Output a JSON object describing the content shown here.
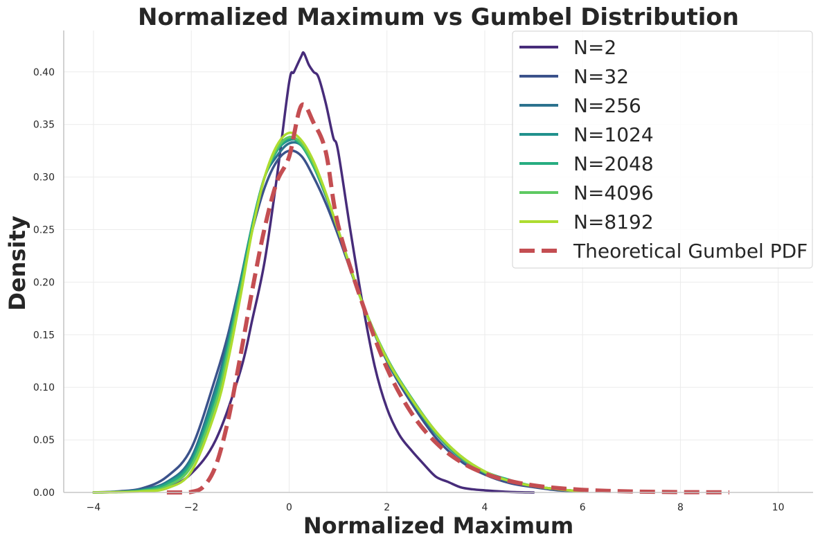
{
  "chart_data": {
    "type": "line",
    "title": "Normalized Maximum vs Gumbel Distribution",
    "xlabel": "Normalized Maximum",
    "ylabel": "Density",
    "xlim": [
      -4.6,
      10.7
    ],
    "ylim": [
      0,
      0.44
    ],
    "xticks": [
      -4,
      -2,
      0,
      2,
      4,
      6,
      8,
      10
    ],
    "xtick_labels": [
      "−4",
      "−2",
      "0",
      "2",
      "4",
      "6",
      "8",
      "10"
    ],
    "yticks": [
      0.0,
      0.05,
      0.1,
      0.15,
      0.2,
      0.25,
      0.3,
      0.35,
      0.4
    ],
    "ytick_labels": [
      "0.00",
      "0.05",
      "0.10",
      "0.15",
      "0.20",
      "0.25",
      "0.30",
      "0.35",
      "0.40"
    ],
    "grid": true,
    "legend_position": "top-right",
    "series": [
      {
        "name": "N=2",
        "color": "#472c7a",
        "style": "solid",
        "x": [
          -3,
          -2.5,
          -2,
          -1.5,
          -1,
          -0.75,
          -0.5,
          -0.25,
          0,
          0.1,
          0.25,
          0.3,
          0.4,
          0.5,
          0.6,
          0.75,
          0.9,
          1,
          1.25,
          1.5,
          1.75,
          2,
          2.25,
          2.5,
          2.75,
          3,
          3.25,
          3.5,
          3.75,
          4,
          4.5,
          5
        ],
        "y": [
          0.001,
          0.004,
          0.018,
          0.05,
          0.115,
          0.165,
          0.22,
          0.3,
          0.39,
          0.4,
          0.415,
          0.418,
          0.407,
          0.4,
          0.395,
          0.37,
          0.338,
          0.325,
          0.25,
          0.18,
          0.12,
          0.08,
          0.055,
          0.04,
          0.027,
          0.015,
          0.01,
          0.005,
          0.003,
          0.002,
          0.0005,
          0.0
        ]
      },
      {
        "name": "N=32",
        "color": "#3b528b",
        "style": "solid",
        "x": [
          -4,
          -3.5,
          -3,
          -2.5,
          -2,
          -1.5,
          -1.25,
          -1,
          -0.75,
          -0.5,
          -0.25,
          0,
          0.25,
          0.5,
          0.75,
          1,
          1.5,
          2,
          2.5,
          3,
          3.5,
          4,
          4.5,
          5,
          5.5,
          6
        ],
        "y": [
          0.0,
          0.001,
          0.004,
          0.015,
          0.042,
          0.11,
          0.15,
          0.2,
          0.25,
          0.29,
          0.315,
          0.325,
          0.32,
          0.3,
          0.275,
          0.245,
          0.18,
          0.125,
          0.085,
          0.052,
          0.03,
          0.017,
          0.009,
          0.005,
          0.002,
          0.001
        ]
      },
      {
        "name": "N=256",
        "color": "#2c728e",
        "style": "solid",
        "x": [
          -4,
          -3.5,
          -3,
          -2.5,
          -2,
          -1.5,
          -1.25,
          -1,
          -0.75,
          -0.5,
          -0.25,
          0,
          0.25,
          0.5,
          0.75,
          1,
          1.5,
          2,
          2.5,
          3,
          3.5,
          4,
          4.5,
          5,
          5.5,
          6
        ],
        "y": [
          0.0,
          0.0005,
          0.003,
          0.01,
          0.033,
          0.1,
          0.145,
          0.2,
          0.255,
          0.3,
          0.32,
          0.332,
          0.33,
          0.31,
          0.282,
          0.25,
          0.18,
          0.125,
          0.088,
          0.056,
          0.034,
          0.019,
          0.011,
          0.006,
          0.003,
          0.001
        ]
      },
      {
        "name": "N=1024",
        "color": "#21918c",
        "style": "solid",
        "x": [
          -4,
          -3.5,
          -3,
          -2.5,
          -2,
          -1.5,
          -1.25,
          -1,
          -0.75,
          -0.5,
          -0.25,
          0,
          0.25,
          0.5,
          0.75,
          1,
          1.5,
          2,
          2.5,
          3,
          3.5,
          4,
          4.5,
          5,
          5.5,
          6
        ],
        "y": [
          0.0,
          0.0005,
          0.002,
          0.009,
          0.03,
          0.095,
          0.14,
          0.195,
          0.255,
          0.3,
          0.325,
          0.335,
          0.333,
          0.312,
          0.283,
          0.25,
          0.18,
          0.127,
          0.088,
          0.056,
          0.033,
          0.019,
          0.011,
          0.006,
          0.003,
          0.001
        ]
      },
      {
        "name": "N=2048",
        "color": "#27ad81",
        "style": "solid",
        "x": [
          -4,
          -3.5,
          -3,
          -2.5,
          -2,
          -1.5,
          -1.25,
          -1,
          -0.75,
          -0.5,
          -0.25,
          0,
          0.25,
          0.5,
          0.75,
          1,
          1.5,
          2,
          2.5,
          3,
          3.5,
          4,
          4.5,
          5,
          5.5,
          6
        ],
        "y": [
          0.0,
          0.0005,
          0.002,
          0.008,
          0.028,
          0.09,
          0.138,
          0.195,
          0.255,
          0.3,
          0.325,
          0.337,
          0.33,
          0.31,
          0.283,
          0.25,
          0.18,
          0.128,
          0.09,
          0.058,
          0.035,
          0.02,
          0.012,
          0.006,
          0.003,
          0.001
        ]
      },
      {
        "name": "N=4096",
        "color": "#5ec962",
        "style": "solid",
        "x": [
          -4,
          -3.5,
          -3,
          -2.5,
          -2,
          -1.5,
          -1.25,
          -1,
          -0.75,
          -0.5,
          -0.25,
          0,
          0.25,
          0.5,
          0.75,
          1,
          1.5,
          2,
          2.5,
          3,
          3.5,
          4,
          4.5,
          5,
          5.5,
          6
        ],
        "y": [
          0.0,
          0.0003,
          0.0015,
          0.006,
          0.025,
          0.085,
          0.133,
          0.19,
          0.25,
          0.3,
          0.327,
          0.338,
          0.332,
          0.312,
          0.284,
          0.25,
          0.18,
          0.127,
          0.089,
          0.057,
          0.034,
          0.019,
          0.011,
          0.006,
          0.003,
          0.001
        ]
      },
      {
        "name": "N=8192",
        "color": "#addc30",
        "style": "solid",
        "x": [
          -4,
          -3.5,
          -3,
          -2.5,
          -2,
          -1.5,
          -1.25,
          -1,
          -0.75,
          -0.5,
          -0.25,
          0,
          0.25,
          0.5,
          0.75,
          1,
          1.5,
          2,
          2.5,
          3,
          3.5,
          4,
          4.5,
          5,
          5.5,
          6
        ],
        "y": [
          0.0,
          0.0003,
          0.001,
          0.004,
          0.02,
          0.078,
          0.125,
          0.185,
          0.25,
          0.3,
          0.33,
          0.342,
          0.335,
          0.315,
          0.285,
          0.25,
          0.18,
          0.127,
          0.089,
          0.058,
          0.035,
          0.02,
          0.011,
          0.006,
          0.003,
          0.001
        ]
      },
      {
        "name": "Theoretical Gumbel PDF",
        "color": "#c44e52",
        "style": "dashed",
        "x": [
          -2.5,
          -2.25,
          -2,
          -1.75,
          -1.5,
          -1.25,
          -1,
          -0.75,
          -0.5,
          -0.25,
          0,
          0.25,
          0.5,
          0.75,
          1,
          1.5,
          2,
          2.5,
          3,
          3.5,
          4,
          4.5,
          5,
          5.5,
          6,
          6.5,
          7,
          7.5,
          8,
          8.5,
          9
        ],
        "y": [
          0.0,
          0.0,
          0.0005,
          0.0056,
          0.0254,
          0.0683,
          0.1288,
          0.1934,
          0.2516,
          0.2954,
          0.3193,
          0.3679,
          0.3516,
          0.3238,
          0.2546,
          0.1794,
          0.1182,
          0.0756,
          0.0474,
          0.0293,
          0.018,
          0.011,
          0.0067,
          0.0041,
          0.0025,
          0.0015,
          0.0009,
          0.0006,
          0.0003,
          0.0002,
          0.0001
        ]
      }
    ]
  }
}
